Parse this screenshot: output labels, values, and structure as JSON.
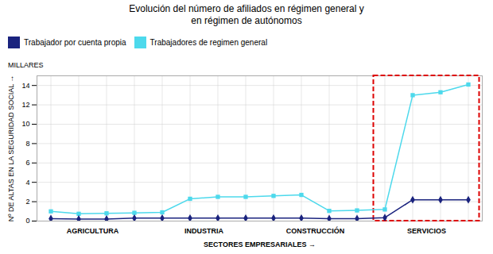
{
  "chart_data": {
    "type": "line",
    "title": "Evolución del número de afiliados en régimen general y\nen régimen de autónomos",
    "annotation": "MILLARES",
    "xlabel": "SECTORES EMPRESARIALES",
    "ylabel": "Nº DE ALTAS EN LA SEGURIDAD SOCIAL",
    "categories": [
      null,
      "AGRICULTURA",
      null,
      null,
      null,
      "INDUSTRIA",
      null,
      null,
      null,
      "CONSTRUCCIÓN",
      null,
      null,
      null,
      "SERVICIOS",
      null,
      null
    ],
    "series": [
      {
        "name": "Trabajador por cuenta propia",
        "color": "#1a237e",
        "marker": "diamond",
        "values": [
          0.25,
          0.2,
          0.2,
          0.3,
          0.3,
          0.3,
          0.3,
          0.3,
          0.3,
          0.3,
          0.25,
          0.25,
          0.35,
          2.2,
          2.2,
          2.2
        ]
      },
      {
        "name": "Trabajadores de regimen general",
        "color": "#4dd9ec",
        "marker": "square",
        "values": [
          1.0,
          0.75,
          0.8,
          0.85,
          0.9,
          2.3,
          2.5,
          2.5,
          2.6,
          2.7,
          1.05,
          1.1,
          1.2,
          13.0,
          13.3,
          14.1
        ]
      }
    ],
    "ylim": [
      0,
      15
    ],
    "yticks": [
      0,
      2,
      4,
      6,
      8,
      10,
      12,
      14
    ],
    "grid": true,
    "legend": "top-left"
  }
}
